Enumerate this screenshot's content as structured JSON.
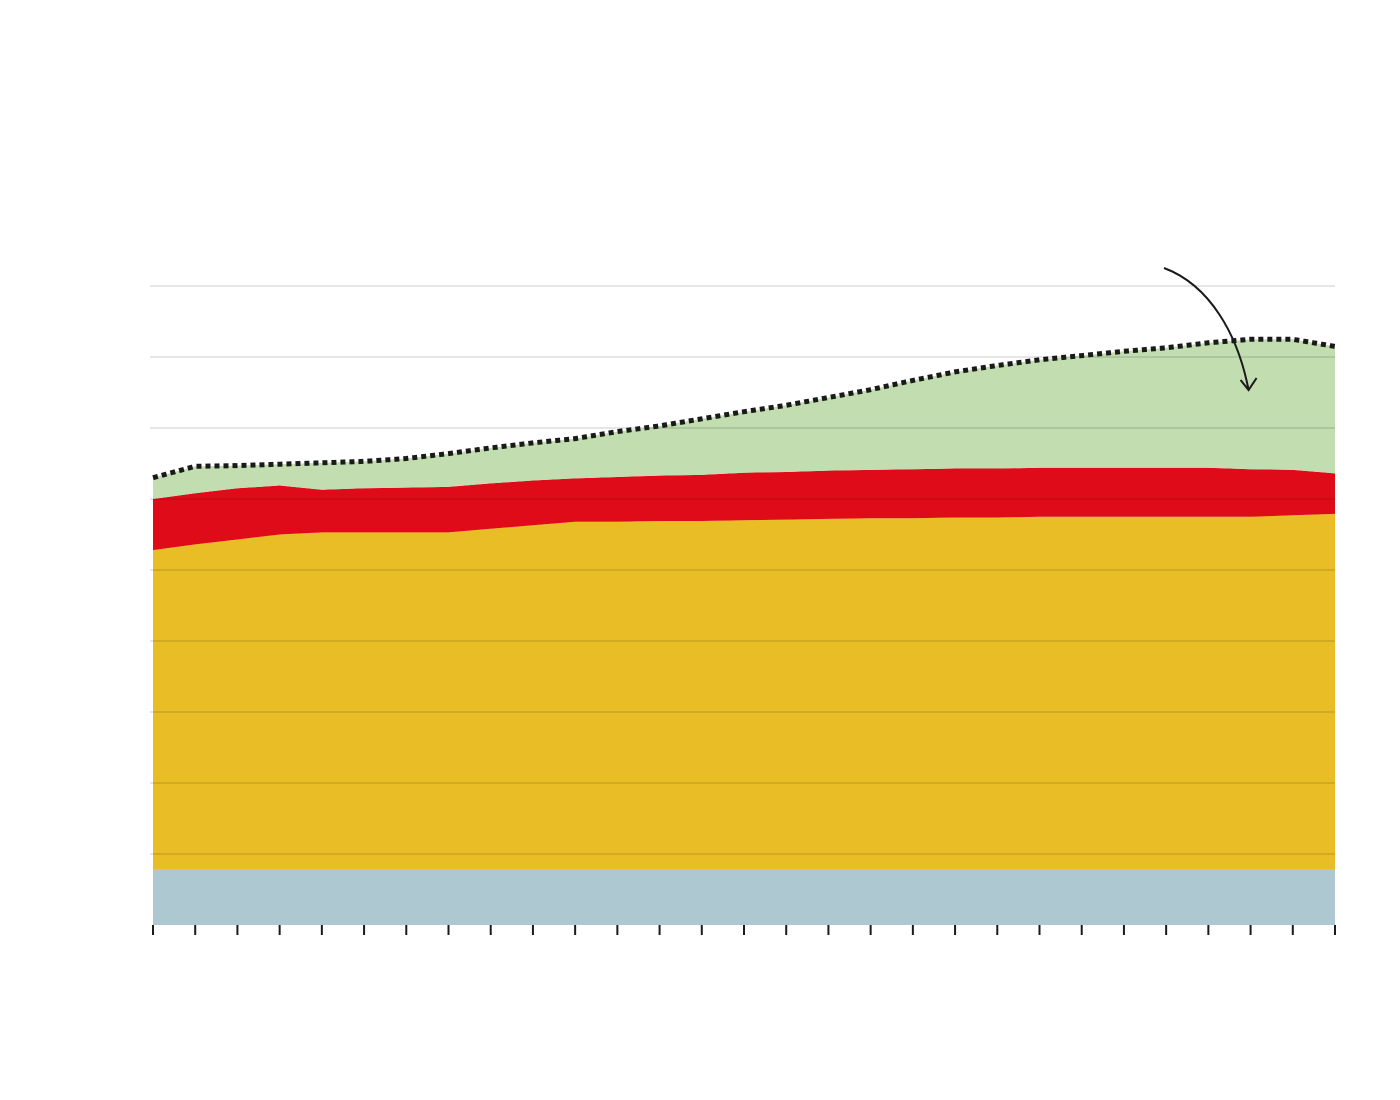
{
  "chart_data": {
    "type": "area",
    "stacked": true,
    "x": [
      0,
      1,
      2,
      3,
      4,
      5,
      6,
      7,
      8,
      9,
      10,
      11,
      12,
      13,
      14,
      15,
      16,
      17,
      18,
      19,
      20,
      21,
      22,
      23,
      24,
      25,
      26,
      27,
      28
    ],
    "ylim": [
      0,
      9
    ],
    "grid": true,
    "colors": {
      "base": "#aec8d2",
      "main": "#e8bd26",
      "middle": "#e00b18",
      "top": "#c2ddb0",
      "total_line": "#1a1a1a",
      "grid": "#cccccc",
      "axis": "#1a1a1a"
    },
    "series": [
      {
        "color_key": "base",
        "values": [
          0.78,
          0.78,
          0.78,
          0.78,
          0.78,
          0.78,
          0.78,
          0.78,
          0.78,
          0.78,
          0.78,
          0.78,
          0.78,
          0.78,
          0.78,
          0.78,
          0.78,
          0.78,
          0.78,
          0.78,
          0.78,
          0.78,
          0.78,
          0.78,
          0.78,
          0.78,
          0.78,
          0.78,
          0.78
        ]
      },
      {
        "color_key": "main",
        "values": [
          4.5,
          4.58,
          4.65,
          4.72,
          4.75,
          4.75,
          4.75,
          4.75,
          4.8,
          4.85,
          4.9,
          4.9,
          4.91,
          4.91,
          4.92,
          4.93,
          4.94,
          4.95,
          4.95,
          4.96,
          4.96,
          4.97,
          4.97,
          4.97,
          4.97,
          4.97,
          4.97,
          4.99,
          5.01
        ]
      },
      {
        "color_key": "middle",
        "values": [
          0.72,
          0.72,
          0.72,
          0.69,
          0.6,
          0.62,
          0.63,
          0.64,
          0.64,
          0.63,
          0.61,
          0.63,
          0.64,
          0.65,
          0.67,
          0.67,
          0.68,
          0.68,
          0.69,
          0.69,
          0.69,
          0.69,
          0.69,
          0.69,
          0.69,
          0.69,
          0.67,
          0.64,
          0.57
        ]
      },
      {
        "color_key": "top",
        "values": [
          0.3,
          0.38,
          0.32,
          0.3,
          0.38,
          0.38,
          0.41,
          0.47,
          0.5,
          0.53,
          0.56,
          0.64,
          0.7,
          0.79,
          0.86,
          0.94,
          1.03,
          1.13,
          1.25,
          1.36,
          1.45,
          1.52,
          1.58,
          1.64,
          1.69,
          1.76,
          1.83,
          1.84,
          1.79
        ]
      }
    ],
    "total_line_style": "dotted",
    "annotation": {
      "type": "curved-arrow",
      "points_to_x": 26
    }
  }
}
